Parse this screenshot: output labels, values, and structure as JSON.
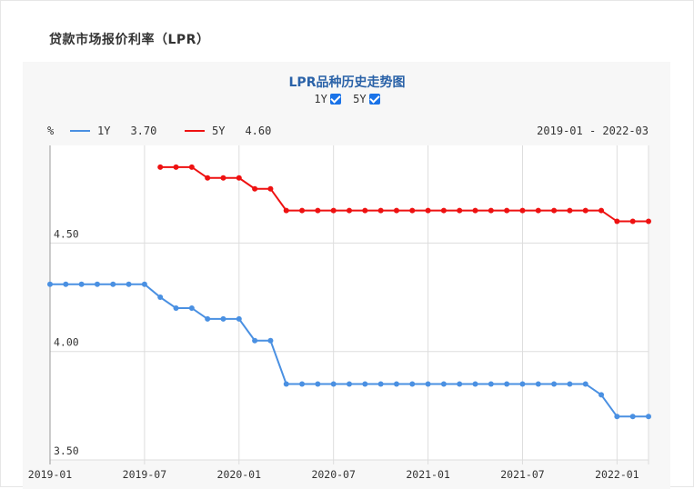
{
  "section_title": "贷款市场报价利率（LPR）",
  "chart_title": "LPR品种历史走势图",
  "toggles": [
    {
      "label": "1Y",
      "checked": true
    },
    {
      "label": "5Y",
      "checked": true
    }
  ],
  "unit_label": "%",
  "date_range": "2019-01 - 2022-03",
  "legend": [
    {
      "name": "1Y",
      "value": "3.70",
      "color": "#4a90e2"
    },
    {
      "name": "5Y",
      "value": "4.60",
      "color": "#ee1111"
    }
  ],
  "chart_data": {
    "type": "line",
    "x_labels": [
      "2019-01",
      "2019-07",
      "2020-01",
      "2020-07",
      "2021-01",
      "2021-07",
      "2022-01"
    ],
    "y_ticks": [
      "3.50",
      "4.00",
      "4.50"
    ],
    "ylim": [
      3.5,
      4.95
    ],
    "x_range": [
      "2019-01",
      "2022-03"
    ],
    "grid": true,
    "series": [
      {
        "name": "1Y",
        "color": "#4a90e2",
        "x": [
          "2019-01",
          "2019-02",
          "2019-03",
          "2019-04",
          "2019-05",
          "2019-06",
          "2019-07",
          "2019-08",
          "2019-09",
          "2019-10",
          "2019-11",
          "2019-12",
          "2020-01",
          "2020-02",
          "2020-03",
          "2020-04",
          "2020-05",
          "2020-06",
          "2020-07",
          "2020-08",
          "2020-09",
          "2020-10",
          "2020-11",
          "2020-12",
          "2021-01",
          "2021-02",
          "2021-03",
          "2021-04",
          "2021-05",
          "2021-06",
          "2021-07",
          "2021-08",
          "2021-09",
          "2021-10",
          "2021-11",
          "2021-12",
          "2022-01",
          "2022-02",
          "2022-03"
        ],
        "values": [
          4.31,
          4.31,
          4.31,
          4.31,
          4.31,
          4.31,
          4.31,
          4.25,
          4.2,
          4.2,
          4.15,
          4.15,
          4.15,
          4.05,
          4.05,
          3.85,
          3.85,
          3.85,
          3.85,
          3.85,
          3.85,
          3.85,
          3.85,
          3.85,
          3.85,
          3.85,
          3.85,
          3.85,
          3.85,
          3.85,
          3.85,
          3.85,
          3.85,
          3.85,
          3.85,
          3.8,
          3.7,
          3.7,
          3.7
        ]
      },
      {
        "name": "5Y",
        "color": "#ee1111",
        "x": [
          "2019-08",
          "2019-09",
          "2019-10",
          "2019-11",
          "2019-12",
          "2020-01",
          "2020-02",
          "2020-03",
          "2020-04",
          "2020-05",
          "2020-06",
          "2020-07",
          "2020-08",
          "2020-09",
          "2020-10",
          "2020-11",
          "2020-12",
          "2021-01",
          "2021-02",
          "2021-03",
          "2021-04",
          "2021-05",
          "2021-06",
          "2021-07",
          "2021-08",
          "2021-09",
          "2021-10",
          "2021-11",
          "2021-12",
          "2022-01",
          "2022-02",
          "2022-03"
        ],
        "values": [
          4.85,
          4.85,
          4.85,
          4.8,
          4.8,
          4.8,
          4.75,
          4.75,
          4.65,
          4.65,
          4.65,
          4.65,
          4.65,
          4.65,
          4.65,
          4.65,
          4.65,
          4.65,
          4.65,
          4.65,
          4.65,
          4.65,
          4.65,
          4.65,
          4.65,
          4.65,
          4.65,
          4.65,
          4.65,
          4.6,
          4.6,
          4.6
        ]
      }
    ]
  }
}
